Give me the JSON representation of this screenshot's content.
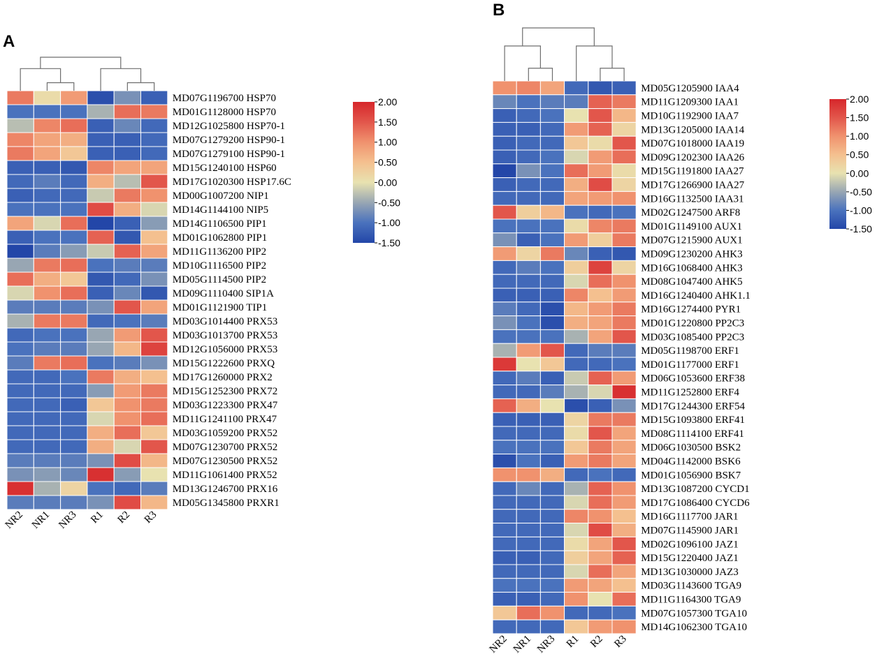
{
  "chart_data": [
    {
      "type": "heatmap",
      "panel": "A",
      "columns": [
        "NR2",
        "NR1",
        "NR3",
        "R1",
        "R2",
        "R3"
      ],
      "rows": [
        "MD07G1196700 HSP70",
        "MD01G1128000 HSP70",
        "MD12G1025800 HSP70-1",
        "MD07G1279200 HSP90-1",
        "MD07G1279100 HSP90-1",
        "MD15G1240100 HSP60",
        "MD17G1020300 HSP17.6C",
        "MD00G1007200 NIP1",
        "MD14G1144100 NIP5",
        "MD14G1106500 PIP1",
        "MD01G1062800 PIP1",
        "MD11G1136200 PIP2",
        "MD10G1116500 PIP2",
        "MD05G1114500 PIP2",
        "MD09G1110400 SIP1A",
        "MD01G1121900 TIP1",
        "MD03G1014400 PRX53",
        "MD03G1013700 PRX53",
        "MD12G1056000 PRX53",
        "MD15G1222600 PRXQ",
        "MD17G1260000 PRX2",
        "MD15G1252300 PRX72",
        "MD03G1223300 PRX47",
        "MD11G1241100 PRX47",
        "MD03G1059200 PRX52",
        "MD07G1230700 PRX52",
        "MD07G1230500 PRX52",
        "MD11G1061400 PRX52",
        "MD13G1246700 PRX16",
        "MD05G1345800 PRXR1"
      ],
      "values": [
        [
          1.2,
          0.1,
          0.9,
          -1.4,
          -0.7,
          -1.2
        ],
        [
          -1.0,
          -1.0,
          -1.0,
          -0.4,
          1.3,
          1.2
        ],
        [
          -0.3,
          1.1,
          1.3,
          -1.2,
          -0.8,
          -1.1
        ],
        [
          1.1,
          0.8,
          0.7,
          -1.2,
          -1.2,
          -1.1
        ],
        [
          1.2,
          0.8,
          0.4,
          -1.2,
          -1.2,
          -1.1
        ],
        [
          -1.2,
          -1.2,
          -1.3,
          1.1,
          0.8,
          0.8
        ],
        [
          -1.1,
          -0.9,
          -1.1,
          0.7,
          -0.3,
          1.5
        ],
        [
          -1.2,
          -1.1,
          -1.1,
          -0.2,
          1.2,
          1.0
        ],
        [
          -1.0,
          -1.0,
          -1.0,
          1.6,
          0.7,
          -0.1
        ],
        [
          0.8,
          -0.1,
          1.3,
          -1.5,
          -1.2,
          -0.6
        ],
        [
          -1.2,
          -1.0,
          -1.0,
          1.4,
          -1.3,
          0.5
        ],
        [
          -1.5,
          -0.9,
          -0.6,
          -0.2,
          1.4,
          0.8
        ],
        [
          -0.5,
          1.2,
          1.3,
          -1.0,
          -0.9,
          -0.9
        ],
        [
          1.3,
          0.7,
          0.4,
          -1.3,
          -1.1,
          -0.7
        ],
        [
          -0.1,
          1.0,
          1.3,
          -1.2,
          -0.8,
          -1.3
        ],
        [
          -0.9,
          -0.9,
          -0.9,
          -0.7,
          1.5,
          0.8
        ],
        [
          -0.4,
          1.2,
          1.2,
          -1.1,
          -1.0,
          -0.9
        ],
        [
          -1.1,
          -1.0,
          -1.0,
          -0.5,
          0.9,
          1.5
        ],
        [
          -1.0,
          -0.9,
          -0.9,
          -0.5,
          0.6,
          1.7
        ],
        [
          -0.9,
          1.2,
          1.3,
          -1.0,
          -0.9,
          -0.7
        ],
        [
          -1.1,
          -1.1,
          -1.0,
          1.2,
          0.7,
          0.5
        ],
        [
          -1.1,
          -1.1,
          -1.1,
          -0.6,
          0.9,
          1.2
        ],
        [
          -1.1,
          -1.1,
          -1.2,
          0.4,
          1.0,
          1.2
        ],
        [
          -1.1,
          -1.1,
          -1.1,
          -0.1,
          1.0,
          1.3
        ],
        [
          -1.1,
          -1.1,
          -1.1,
          0.7,
          1.3,
          0.4
        ],
        [
          -1.1,
          -1.1,
          -1.1,
          0.7,
          -0.1,
          1.5
        ],
        [
          -0.9,
          -0.9,
          -0.9,
          -0.7,
          1.6,
          0.6
        ],
        [
          -0.7,
          -0.6,
          -0.8,
          1.9,
          -0.6,
          0.0
        ],
        [
          1.9,
          -0.4,
          0.2,
          -1.0,
          -1.1,
          -0.9
        ],
        [
          -0.9,
          -0.9,
          -0.9,
          -0.7,
          1.6,
          0.6
        ]
      ],
      "colorbar": {
        "min": -1.5,
        "max": 2.0,
        "ticks": [
          "2.00",
          "1.50",
          "1.00",
          "0.50",
          "0.00",
          "-0.50",
          "-1.00",
          "-1.50"
        ]
      }
    },
    {
      "type": "heatmap",
      "panel": "B",
      "columns": [
        "NR2",
        "NR1",
        "NR3",
        "R1",
        "R2",
        "R3"
      ],
      "rows": [
        "MD05G1205900 IAA4",
        "MD11G1209300 IAA1",
        "MD10G1192900 IAA7",
        "MD13G1205000 IAA14",
        "MD07G1018000 IAA19",
        "MD09G1202300 IAA26",
        "MD15G1191800 IAA27",
        "MD17G1266900 IAA27",
        "MD16G1132500 IAA31",
        "MD02G1247500 ARF8",
        "MD01G1149100 AUX1",
        "MD07G1215900 AUX1",
        "MD09G1230200 AHK3",
        "MD16G1068400 AHK3",
        "MD08G1047400 AHK5",
        "MD16G1240400 AHK1.1",
        "MD16G1274400 PYR1",
        "MD01G1220800 PP2C3",
        "MD03G1085400 PP2C3",
        "MD05G1198700 ERF1",
        "MD01G1177000 ERF1",
        "MD06G1053600 ERF38",
        "MD11G1252800 ERF4",
        "MD17G1244300 ERF54",
        "MD15G1093800 ERF41",
        "MD08G1114100 ERF41",
        "MD06G1030500 BSK2",
        "MD04G1142000 BSK6",
        "MD01G1056900 BSK7",
        "MD13G1087200 CYCD1",
        "MD17G1086400 CYCD6",
        "MD16G1117700 JAR1",
        "MD07G1145900 JAR1",
        "MD02G1096100 JAZ1",
        "MD15G1220400 JAZ1",
        "MD13G1030000 JAZ3",
        "MD03G1143600 TGA9",
        "MD11G1164300 TGA9",
        "MD07G1057300 TGA10",
        "MD14G1062300 TGA10"
      ],
      "values": [
        [
          1.0,
          1.1,
          0.8,
          -1.1,
          -1.3,
          -1.2
        ],
        [
          -0.8,
          -1.0,
          -0.9,
          -0.9,
          1.4,
          1.2
        ],
        [
          -1.2,
          -1.1,
          -1.0,
          0.0,
          1.5,
          0.6
        ],
        [
          -1.2,
          -1.2,
          -1.1,
          0.9,
          1.4,
          0.2
        ],
        [
          -1.2,
          -1.1,
          -1.1,
          0.4,
          0.1,
          1.5
        ],
        [
          -1.2,
          -1.1,
          -1.0,
          -0.1,
          0.9,
          1.3
        ],
        [
          -1.5,
          -0.7,
          -1.0,
          1.3,
          0.9,
          0.1
        ],
        [
          -1.2,
          -1.1,
          -1.1,
          0.7,
          1.6,
          0.2
        ],
        [
          -1.1,
          -1.1,
          -1.1,
          0.8,
          0.9,
          1.0
        ],
        [
          1.5,
          0.3,
          0.6,
          -1.0,
          -1.1,
          -1.0
        ],
        [
          -1.0,
          -1.0,
          -1.0,
          0.1,
          1.1,
          1.2
        ],
        [
          -0.7,
          -1.2,
          -1.0,
          0.9,
          0.3,
          1.2
        ],
        [
          0.9,
          0.2,
          1.2,
          -0.8,
          -1.2,
          -1.3
        ],
        [
          -1.1,
          -0.9,
          -1.0,
          0.3,
          1.7,
          0.2
        ],
        [
          -1.1,
          -1.1,
          -1.1,
          -0.1,
          1.3,
          1.0
        ],
        [
          -1.2,
          -1.2,
          -1.2,
          1.1,
          0.5,
          0.9
        ],
        [
          -0.9,
          -1.1,
          -1.4,
          0.6,
          0.9,
          1.2
        ],
        [
          -0.7,
          -1.0,
          -1.4,
          0.7,
          0.8,
          1.2
        ],
        [
          -1.0,
          -1.0,
          -1.0,
          -0.4,
          0.8,
          1.5
        ],
        [
          -0.4,
          0.9,
          1.5,
          -1.1,
          -0.9,
          -0.9
        ],
        [
          1.8,
          0.0,
          0.4,
          -1.1,
          -1.1,
          -1.0
        ],
        [
          -1.1,
          -0.9,
          -1.2,
          -0.2,
          1.4,
          0.9
        ],
        [
          -1.1,
          -1.1,
          -0.9,
          -0.4,
          -0.1,
          1.9
        ],
        [
          1.4,
          0.7,
          0.0,
          -1.4,
          -1.2,
          -0.7
        ],
        [
          -1.2,
          -1.2,
          -1.2,
          0.2,
          1.2,
          1.2
        ],
        [
          -1.1,
          -1.1,
          -1.1,
          0.1,
          1.5,
          0.8
        ],
        [
          -1.0,
          -1.0,
          -1.0,
          0.4,
          1.2,
          0.8
        ],
        [
          -1.4,
          -1.0,
          -1.2,
          0.9,
          1.2,
          0.8
        ],
        [
          1.0,
          1.0,
          0.7,
          -1.1,
          -1.0,
          -1.1
        ],
        [
          -1.1,
          -0.8,
          -1.1,
          -0.4,
          1.4,
          1.0
        ],
        [
          -1.1,
          -1.1,
          -1.1,
          -0.1,
          1.3,
          0.9
        ],
        [
          -1.1,
          -1.1,
          -1.1,
          1.1,
          1.0,
          0.5
        ],
        [
          -1.1,
          -1.1,
          -1.1,
          -0.1,
          1.6,
          0.7
        ],
        [
          -1.1,
          -1.1,
          -1.1,
          0.1,
          0.8,
          1.5
        ],
        [
          -1.2,
          -1.2,
          -1.1,
          0.3,
          0.8,
          1.4
        ],
        [
          -1.1,
          -1.1,
          -1.1,
          -0.1,
          1.3,
          0.8
        ],
        [
          -1.0,
          -1.0,
          -1.0,
          0.9,
          0.8,
          0.5
        ],
        [
          -1.2,
          -1.2,
          -1.1,
          1.0,
          0.0,
          1.3
        ],
        [
          0.4,
          1.3,
          1.0,
          -1.1,
          -1.1,
          -1.0
        ],
        [
          -1.1,
          -1.1,
          -1.1,
          0.4,
          0.9,
          1.0
        ]
      ],
      "colorbar": {
        "min": -1.5,
        "max": 2.0,
        "ticks": [
          "2.00",
          "1.50",
          "1.00",
          "0.50",
          "0.00",
          "-0.50",
          "-1.00",
          "-1.50"
        ]
      }
    }
  ],
  "panel_labels": {
    "a": "A",
    "b": "B"
  }
}
